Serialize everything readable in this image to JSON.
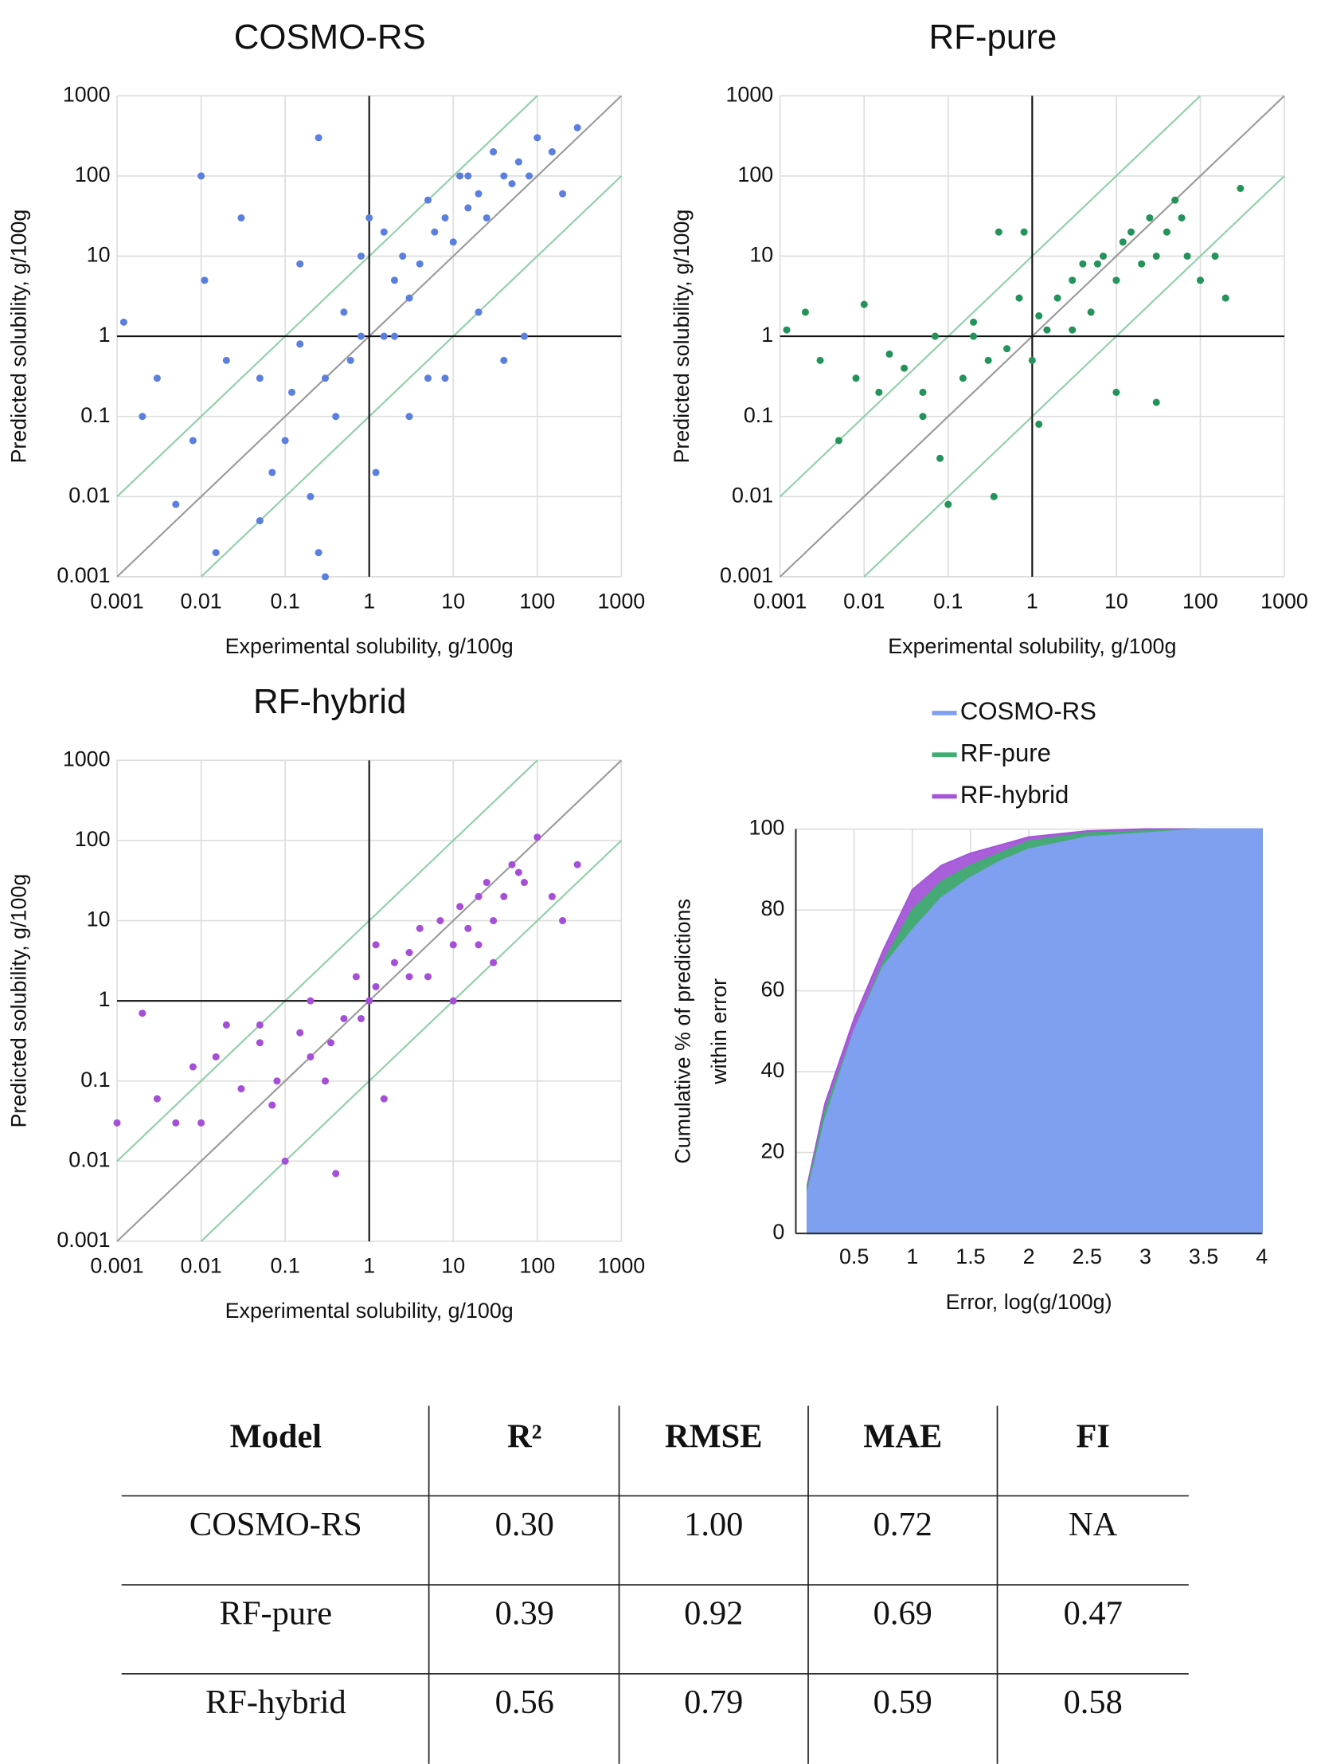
{
  "chart_data": [
    {
      "type": "scatter",
      "title": "COSMO-RS",
      "xlabel": "Experimental solubility, g/100g",
      "ylabel": "Predicted solubility, g/100g",
      "xscale": "log",
      "yscale": "log",
      "xlim": [
        0.001,
        1000
      ],
      "ylim": [
        0.001,
        1000
      ],
      "xticks": [
        0.001,
        0.01,
        0.1,
        1,
        10,
        100,
        1000
      ],
      "yticks": [
        0.001,
        0.01,
        0.1,
        1,
        10,
        100,
        1000
      ],
      "grid": true,
      "axis_cross": {
        "x": 1,
        "y": 1
      },
      "guide_lines": [
        {
          "factor": 1,
          "color": "#9a9a9a"
        },
        {
          "factor": 10,
          "color": "#8fd0a8"
        },
        {
          "factor": 0.1,
          "color": "#8fd0a8"
        }
      ],
      "color": "#5b7fe0",
      "x": [
        0.0012,
        0.002,
        0.003,
        0.005,
        0.008,
        0.01,
        0.015,
        0.02,
        0.03,
        0.05,
        0.07,
        0.1,
        0.12,
        0.15,
        0.2,
        0.25,
        0.3,
        0.4,
        0.5,
        0.6,
        0.8,
        1,
        1.2,
        1.5,
        2,
        2.5,
        3,
        4,
        5,
        6,
        8,
        10,
        12,
        15,
        20,
        25,
        30,
        40,
        50,
        60,
        80,
        100,
        150,
        200,
        300,
        0.25,
        0.3,
        1.5,
        3,
        8,
        20,
        40,
        70,
        0.011,
        0.05,
        0.15,
        0.8,
        2,
        5,
        15
      ],
      "values": [
        1.5,
        0.1,
        0.3,
        0.008,
        0.05,
        100,
        0.002,
        0.5,
        30,
        0.3,
        0.02,
        0.05,
        0.2,
        0.8,
        0.01,
        0.002,
        0.3,
        0.1,
        2,
        0.5,
        1,
        30,
        0.02,
        20,
        5,
        10,
        3,
        8,
        50,
        20,
        30,
        15,
        100,
        40,
        60,
        30,
        200,
        100,
        80,
        150,
        100,
        300,
        200,
        60,
        400,
        300,
        0.001,
        1,
        0.1,
        0.3,
        2,
        0.5,
        1,
        5,
        0.005,
        8,
        10,
        1,
        0.3,
        100
      ]
    },
    {
      "type": "scatter",
      "title": "RF-pure",
      "xlabel": "Experimental solubility, g/100g",
      "ylabel": "Predicted solubility, g/100g",
      "xscale": "log",
      "yscale": "log",
      "xlim": [
        0.001,
        1000
      ],
      "ylim": [
        0.001,
        1000
      ],
      "xticks": [
        0.001,
        0.01,
        0.1,
        1,
        10,
        100,
        1000
      ],
      "yticks": [
        0.001,
        0.01,
        0.1,
        1,
        10,
        100,
        1000
      ],
      "grid": true,
      "axis_cross": {
        "x": 1,
        "y": 1
      },
      "guide_lines": [
        {
          "factor": 1,
          "color": "#9a9a9a"
        },
        {
          "factor": 10,
          "color": "#8fd0a8"
        },
        {
          "factor": 0.1,
          "color": "#8fd0a8"
        }
      ],
      "color": "#23935a",
      "x": [
        0.0012,
        0.002,
        0.003,
        0.005,
        0.008,
        0.01,
        0.015,
        0.02,
        0.03,
        0.05,
        0.07,
        0.1,
        0.15,
        0.2,
        0.3,
        0.4,
        0.5,
        0.7,
        1,
        1.2,
        1.5,
        2,
        3,
        4,
        5,
        7,
        10,
        12,
        15,
        20,
        25,
        30,
        40,
        50,
        70,
        100,
        150,
        200,
        300,
        0.08,
        0.35,
        0.8,
        3,
        10,
        30,
        60,
        0.05,
        0.2,
        1.2,
        6
      ],
      "values": [
        1.2,
        2,
        0.5,
        0.05,
        0.3,
        2.5,
        0.2,
        0.6,
        0.4,
        0.1,
        1,
        0.008,
        0.3,
        1.5,
        0.5,
        20,
        0.7,
        3,
        0.5,
        1.8,
        1.2,
        3,
        5,
        8,
        2,
        10,
        5,
        15,
        20,
        8,
        30,
        10,
        20,
        50,
        10,
        5,
        10,
        3,
        70,
        0.03,
        0.01,
        20,
        1.2,
        0.2,
        0.15,
        30,
        0.2,
        1,
        0.08,
        8
      ]
    },
    {
      "type": "scatter",
      "title": "RF-hybrid",
      "xlabel": "Experimental solubility, g/100g",
      "ylabel": "Predicted solubility, g/100g",
      "xscale": "log",
      "yscale": "log",
      "xlim": [
        0.001,
        1000
      ],
      "ylim": [
        0.001,
        1000
      ],
      "xticks": [
        0.001,
        0.01,
        0.1,
        1,
        10,
        100,
        1000
      ],
      "yticks": [
        0.001,
        0.01,
        0.1,
        1,
        10,
        100,
        1000
      ],
      "grid": true,
      "axis_cross": {
        "x": 1,
        "y": 1
      },
      "guide_lines": [
        {
          "factor": 1,
          "color": "#9a9a9a"
        },
        {
          "factor": 10,
          "color": "#8fd0a8"
        },
        {
          "factor": 0.1,
          "color": "#8fd0a8"
        }
      ],
      "color": "#a54fd8",
      "x": [
        0.001,
        0.002,
        0.003,
        0.005,
        0.008,
        0.01,
        0.015,
        0.02,
        0.03,
        0.05,
        0.07,
        0.1,
        0.15,
        0.2,
        0.3,
        0.4,
        0.5,
        0.7,
        1,
        1.2,
        1.5,
        2,
        3,
        4,
        5,
        7,
        10,
        12,
        15,
        20,
        25,
        30,
        40,
        50,
        70,
        100,
        150,
        200,
        300,
        0.08,
        0.35,
        0.8,
        3,
        10,
        30,
        60,
        0.05,
        0.2,
        1.2,
        20
      ],
      "values": [
        0.03,
        0.7,
        0.06,
        0.03,
        0.15,
        0.03,
        0.2,
        0.5,
        0.08,
        0.3,
        0.05,
        0.01,
        0.4,
        1,
        0.1,
        0.007,
        0.6,
        2,
        1,
        1.5,
        0.06,
        3,
        4,
        8,
        2,
        10,
        5,
        15,
        8,
        20,
        30,
        10,
        20,
        50,
        30,
        110,
        20,
        10,
        50,
        0.1,
        0.3,
        0.6,
        2,
        1,
        3,
        40,
        0.5,
        0.2,
        5,
        5
      ]
    },
    {
      "type": "area",
      "xlabel": "Error, log(g/100g)",
      "ylabel": [
        "Cumulative % of predictions",
        "within error"
      ],
      "xlim": [
        0,
        4
      ],
      "ylim": [
        0,
        100
      ],
      "xticks": [
        0.5,
        1,
        1.5,
        2,
        2.5,
        3,
        3.5,
        4
      ],
      "yticks": [
        0,
        20,
        40,
        60,
        80,
        100
      ],
      "grid": true,
      "legend": "top",
      "x": [
        0.1,
        0.25,
        0.5,
        0.75,
        1,
        1.25,
        1.5,
        1.75,
        2,
        2.5,
        3,
        3.5,
        4
      ],
      "series": [
        {
          "name": "COSMO-RS",
          "color": "#7f9ff0",
          "values": [
            10,
            28,
            50,
            66,
            75,
            83,
            88,
            92,
            95,
            98,
            99,
            100,
            100
          ]
        },
        {
          "name": "RF-pure",
          "color": "#3fae70",
          "values": [
            11,
            30,
            50,
            67,
            80,
            87,
            91,
            94,
            97,
            99,
            99.5,
            100,
            100
          ]
        },
        {
          "name": "RF-hybrid",
          "color": "#a456d8",
          "values": [
            12,
            32,
            53,
            70,
            85,
            91,
            94,
            96,
            98,
            99.5,
            100,
            100,
            100
          ]
        }
      ]
    }
  ],
  "table": {
    "columns": [
      "Model",
      "R²",
      "RMSE",
      "MAE",
      "FI"
    ],
    "rows": [
      [
        "COSMO-RS",
        "0.30",
        "1.00",
        "0.72",
        "NA"
      ],
      [
        "RF-pure",
        "0.39",
        "0.92",
        "0.69",
        "0.47"
      ],
      [
        "RF-hybrid",
        "0.56",
        "0.79",
        "0.59",
        "0.58"
      ]
    ]
  }
}
